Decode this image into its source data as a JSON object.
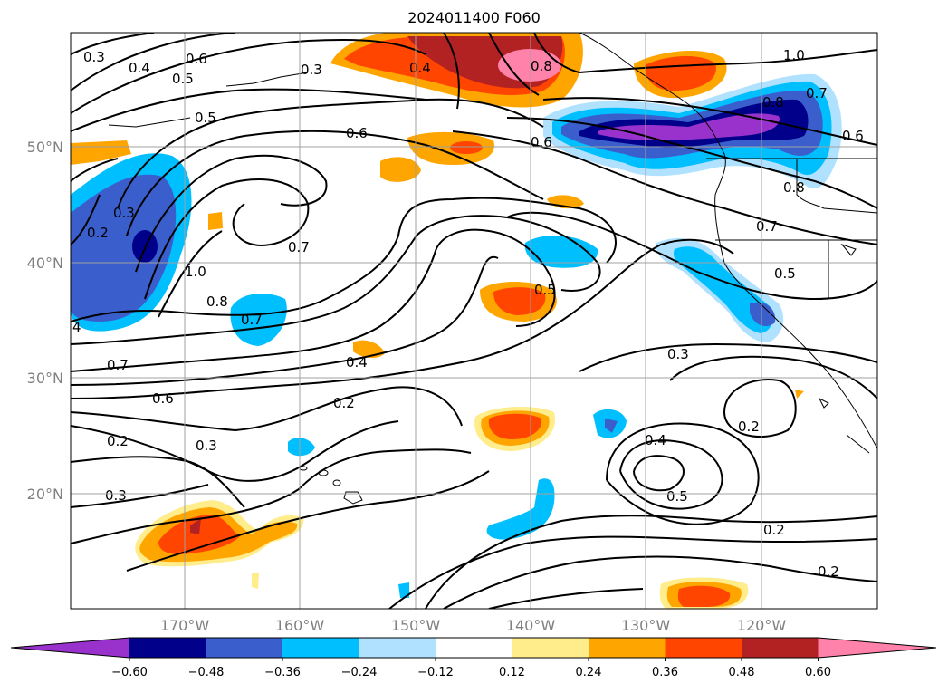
{
  "title": "2024011400 F060",
  "lat_labels": [
    "20°N",
    "30°N",
    "40°N",
    "50°N"
  ],
  "lon_labels": [
    "170°W",
    "160°W",
    "150°W",
    "140°W",
    "130°W",
    "120°W"
  ],
  "colorbar": {
    "colors": [
      "#9932cc",
      "#00008b",
      "#3a5fcd",
      "#00bfff",
      "#b0e2ff",
      "#ffffff",
      "#ffec8b",
      "#ffa500",
      "#ff4500",
      "#b22222",
      "#ff82ab"
    ],
    "labels": [
      "−0.60",
      "−0.48",
      "−0.36",
      "−0.24",
      "−0.12",
      "0.12",
      "0.24",
      "0.36",
      "0.48",
      "0.60"
    ]
  },
  "contour_labels": [
    "0.3",
    "0.4",
    "0.6",
    "0.5",
    "0.3",
    "0.4",
    "0.8",
    "1.0",
    "0.7",
    "0.8",
    "0.6",
    "0.5",
    "0.6",
    "0.6",
    "0.8",
    "0.3",
    "0.2",
    "1.0",
    "0.7",
    "0.7",
    "0.5",
    "0.8",
    "0.7",
    "0.5",
    "4",
    "0.7",
    "0.6",
    "0.4",
    "0.2",
    "0.3",
    "0.2",
    "0.3",
    "0.3",
    "0.2",
    "0.4",
    "0.5",
    "0.2",
    "0.2"
  ]
}
